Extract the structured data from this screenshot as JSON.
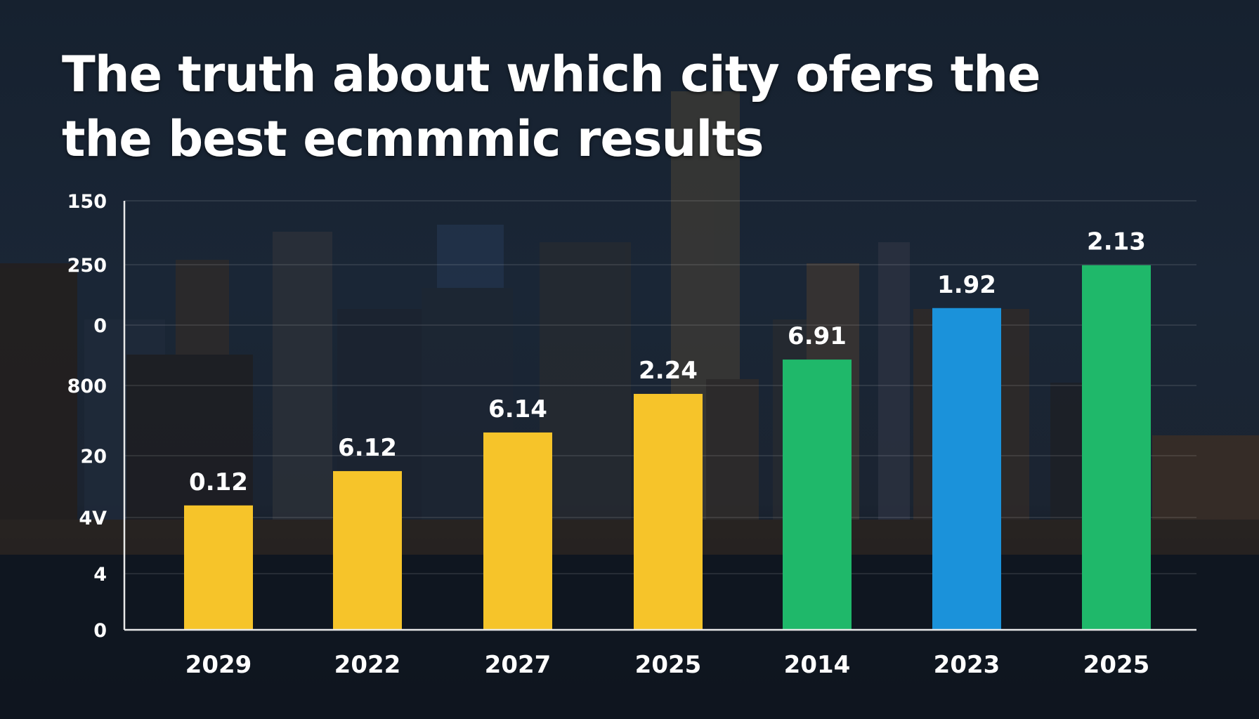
{
  "title_lines": [
    "The truth about which city ofers the",
    "the best ecmmmic results"
  ],
  "chart_data": {
    "type": "bar",
    "title": "The truth about which city ofers the the best ecmmmic results",
    "categories": [
      "2029",
      "2022",
      "2027",
      "2025",
      "2014",
      "2023",
      "2025"
    ],
    "values": [
      0.12,
      6.12,
      6.14,
      2.24,
      6.91,
      1.92,
      2.13
    ],
    "value_labels": [
      "0.12",
      "6.12",
      "6.14",
      "2.24",
      "6.91",
      "1.92",
      "2.13"
    ],
    "bar_level_fraction_of_axis": [
      0.29,
      0.37,
      0.46,
      0.55,
      0.63,
      0.75,
      0.85
    ],
    "bar_colors": [
      "#f6c42a",
      "#f6c42a",
      "#f6c42a",
      "#f6c42a",
      "#1fb86a",
      "#1b92da",
      "#1fb86a"
    ],
    "y_tick_labels": [
      "150",
      "250",
      "0",
      "800",
      "20",
      "4V",
      "4",
      "0"
    ],
    "xlabel": "",
    "ylabel": "",
    "grid": true,
    "legend": "none"
  }
}
